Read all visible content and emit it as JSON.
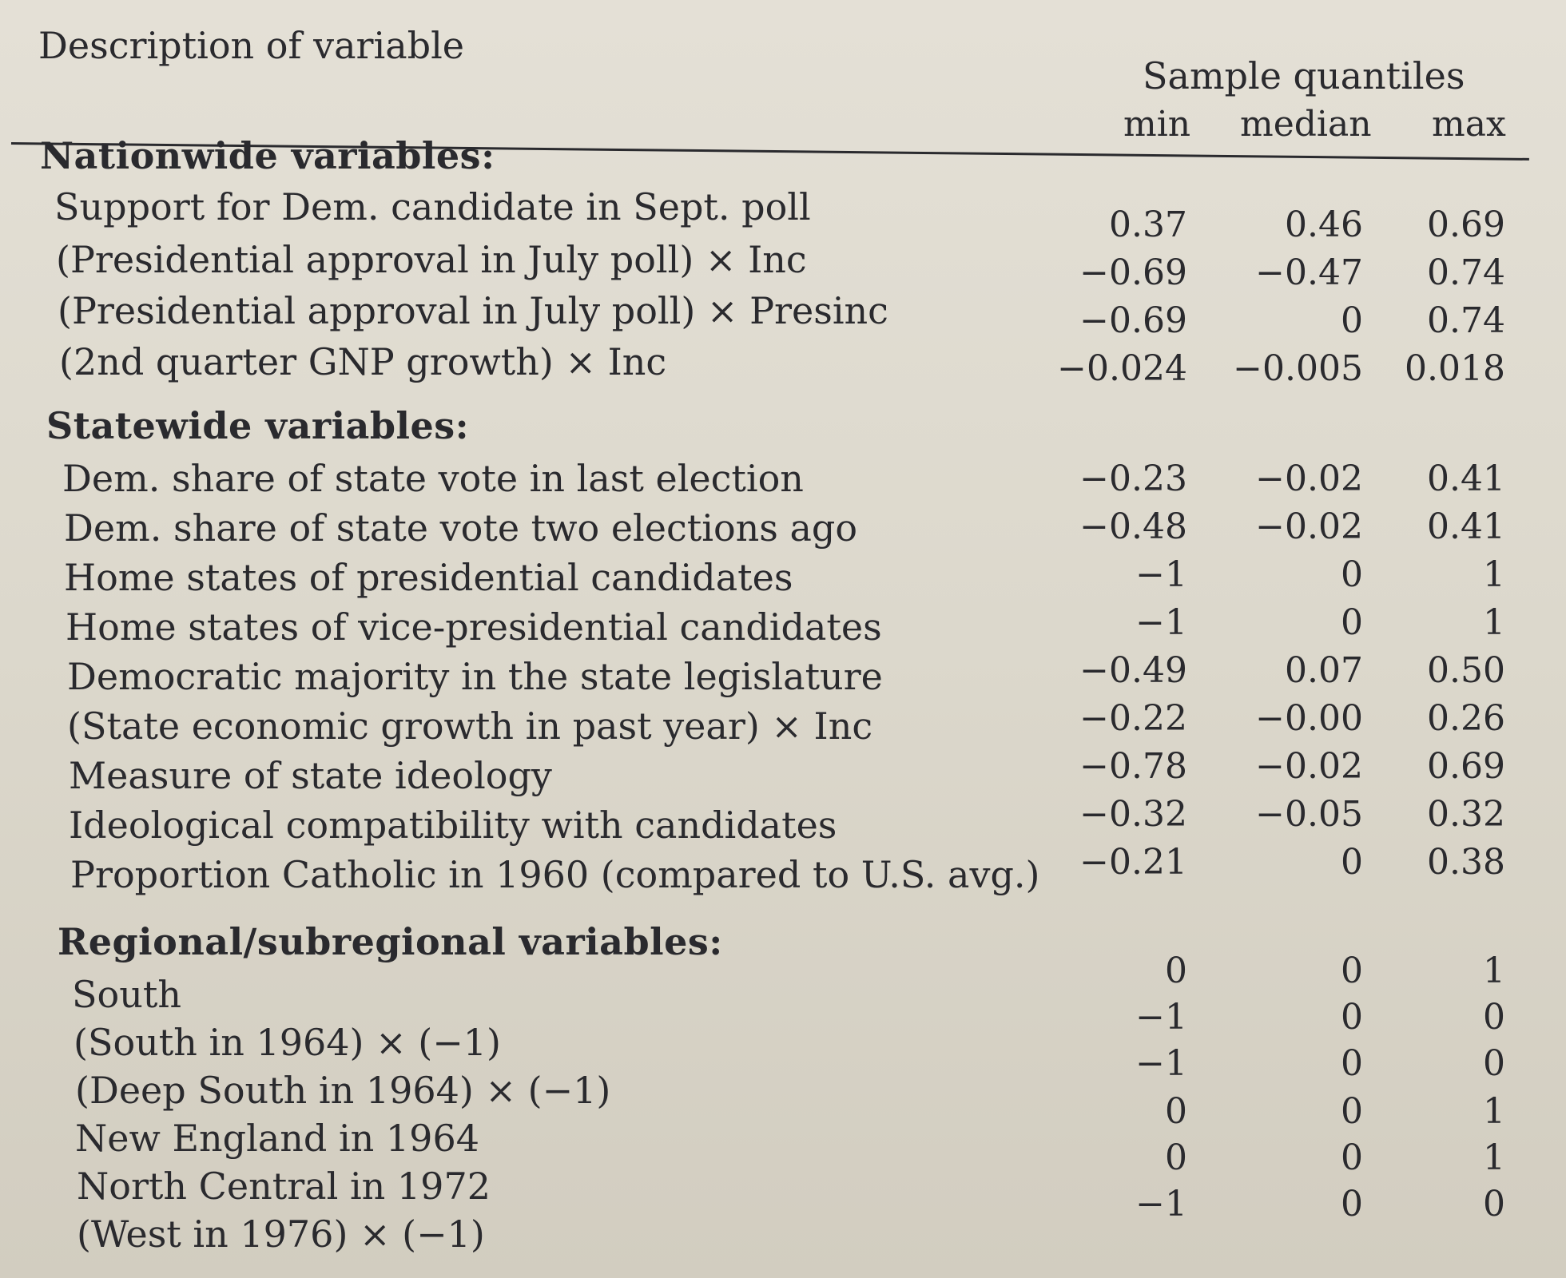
{
  "header": {
    "description": "Description of variable",
    "sample_quantiles": "Sample quantiles",
    "min": "min",
    "median": "median",
    "max": "max"
  },
  "sections": [
    {
      "title": "Nationwide variables:",
      "rows": [
        {
          "label": "Support for Dem. candidate in Sept. poll",
          "min": "0.37",
          "median": "0.46",
          "max": "0.69"
        },
        {
          "label": "(Presidential approval in July poll) × Inc",
          "min": "−0.69",
          "median": "−0.47",
          "max": "0.74"
        },
        {
          "label": "(Presidential approval in July poll) × Presinc",
          "min": "−0.69",
          "median": "0",
          "max": "0.74"
        },
        {
          "label": "(2nd quarter GNP growth) × Inc",
          "min": "−0.024",
          "median": "−0.005",
          "max": "0.018"
        }
      ]
    },
    {
      "title": "Statewide variables:",
      "rows": [
        {
          "label": "Dem. share of state vote in last election",
          "min": "−0.23",
          "median": "−0.02",
          "max": "0.41"
        },
        {
          "label": "Dem. share of state vote two elections ago",
          "min": "−0.48",
          "median": "−0.02",
          "max": "0.41"
        },
        {
          "label": "Home states of presidential candidates",
          "min": "−1",
          "median": "0",
          "max": "1"
        },
        {
          "label": "Home states of vice-presidential candidates",
          "min": "−1",
          "median": "0",
          "max": "1"
        },
        {
          "label": "Democratic majority in the state legislature",
          "min": "−0.49",
          "median": "0.07",
          "max": "0.50"
        },
        {
          "label": "(State economic growth in past year) × Inc",
          "min": "−0.22",
          "median": "−0.00",
          "max": "0.26"
        },
        {
          "label": "Measure of state ideology",
          "min": "−0.78",
          "median": "−0.02",
          "max": "0.69"
        },
        {
          "label": "Ideological compatibility with candidates",
          "min": "−0.32",
          "median": "−0.05",
          "max": "0.32"
        },
        {
          "label": "Proportion Catholic in 1960 (compared to U.S. avg.)",
          "min": "−0.21",
          "median": "0",
          "max": "0.38"
        }
      ]
    },
    {
      "title": "Regional/subregional variables:",
      "rows": [
        {
          "label": "South",
          "min": "0",
          "median": "0",
          "max": "1"
        },
        {
          "label": "(South in 1964) × (−1)",
          "min": "−1",
          "median": "0",
          "max": "0"
        },
        {
          "label": "(Deep South in 1964) × (−1)",
          "min": "−1",
          "median": "0",
          "max": "0"
        },
        {
          "label": "New England in 1964",
          "min": "0",
          "median": "0",
          "max": "1"
        },
        {
          "label": "North Central in 1972",
          "min": "0",
          "median": "0",
          "max": "1"
        },
        {
          "label": "(West in 1976) × (−1)",
          "min": "−1",
          "median": "0",
          "max": "0"
        }
      ]
    }
  ]
}
